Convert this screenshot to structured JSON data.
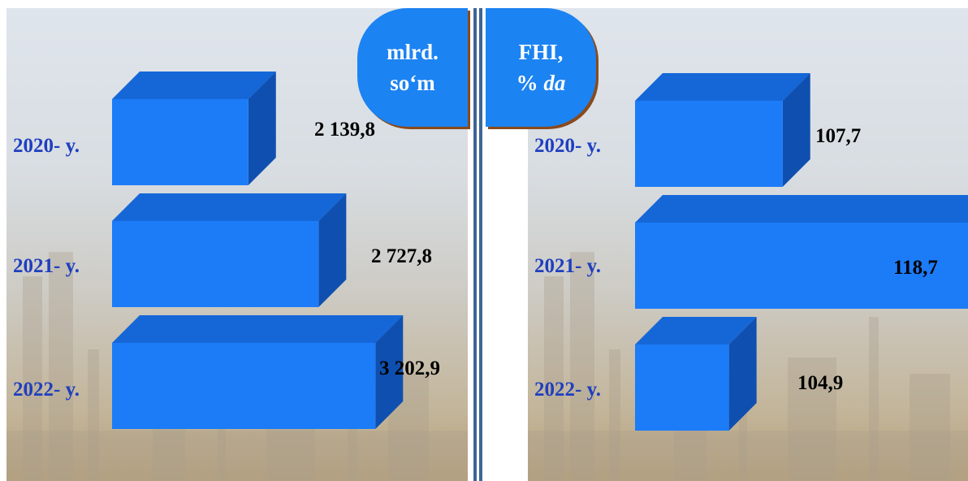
{
  "chart_data": [
    {
      "type": "bar",
      "unit_label": [
        "mlrd.",
        "so‘m"
      ],
      "categories": [
        "2020- y.",
        "2021- y.",
        "2022- y."
      ],
      "values": [
        2139.8,
        2727.8,
        3202.9
      ],
      "value_labels": [
        "2 139,8",
        "2 727,8",
        "3 202,9"
      ],
      "xlim": [
        1000,
        3500
      ],
      "bar_color": "#1c7cf8"
    },
    {
      "type": "bar",
      "unit_label": [
        "FHI,",
        "% ",
        "da"
      ],
      "categories": [
        "2020- y.",
        "2021- y.",
        "2022- y."
      ],
      "values": [
        107.7,
        118.7,
        104.9
      ],
      "value_labels": [
        "107,7",
        "118,7",
        "104,9"
      ],
      "xlim": [
        100,
        120
      ],
      "bar_color": "#1c7cf8"
    }
  ],
  "colors": {
    "bar_front": "#1c7cf8",
    "bar_top": "#1567d8",
    "bar_side": "#0f4fb0",
    "category_text": "#1f3fbf",
    "badge": "#1c83f2",
    "divider": "#3e6596"
  }
}
